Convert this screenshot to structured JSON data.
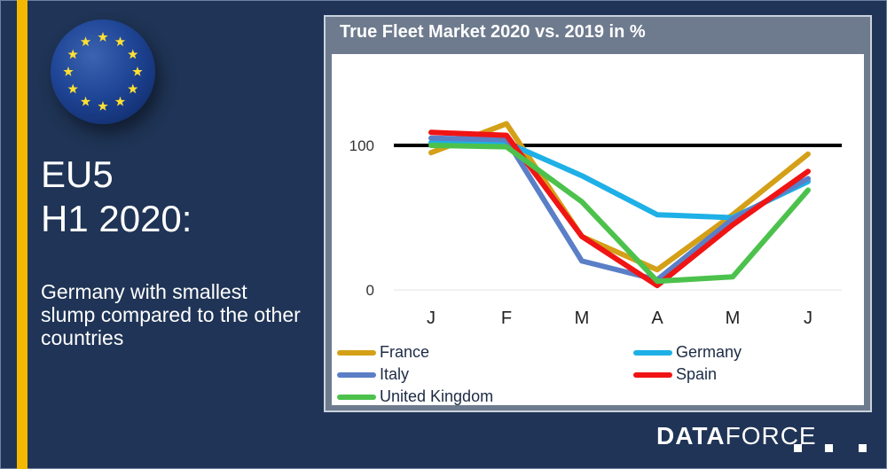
{
  "left_panel": {
    "headline_line1": "EU5",
    "headline_line2": "H1 2020:",
    "subtext": "Germany with smallest slump compared to the other countries",
    "flag_icon": "eu-flag-icon",
    "accent_color": "#f5b800",
    "background_color": "#1f3456"
  },
  "logo": {
    "bold_part": "DATA",
    "regular_part": "FORCE"
  },
  "chart_data": {
    "type": "line",
    "title": "True Fleet Market 2020 vs. 2019 in %",
    "xlabel": "",
    "ylabel": "",
    "categories": [
      "J",
      "F",
      "M",
      "A",
      "M",
      "J"
    ],
    "y_ticks": [
      "0",
      "100"
    ],
    "ylim": [
      0,
      100
    ],
    "reference_line": {
      "value": 100,
      "color": "#000000"
    },
    "grid": false,
    "legend_position": "bottom",
    "series": [
      {
        "name": "France",
        "color": "#d4a017",
        "values": [
          95,
          115,
          37,
          14,
          52,
          94
        ]
      },
      {
        "name": "Germany",
        "color": "#1eb0e6",
        "values": [
          102,
          102,
          79,
          52,
          50,
          75
        ]
      },
      {
        "name": "Italy",
        "color": "#5b7fc7",
        "values": [
          105,
          104,
          20,
          7,
          49,
          77
        ]
      },
      {
        "name": "Spain",
        "color": "#f01414",
        "values": [
          109,
          107,
          37,
          3,
          45,
          82
        ]
      },
      {
        "name": "United Kingdom",
        "color": "#4cc24c",
        "values": [
          100,
          99,
          61,
          6,
          9,
          69
        ]
      }
    ]
  }
}
